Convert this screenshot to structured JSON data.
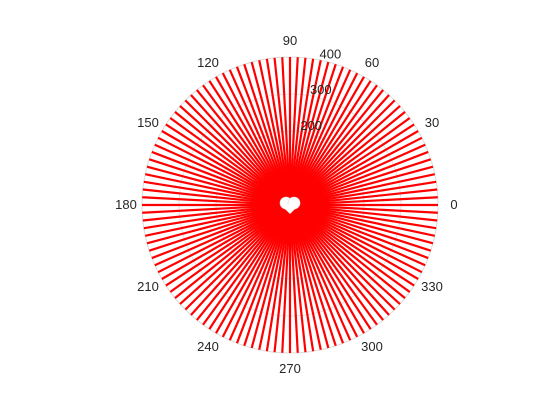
{
  "chart_data": {
    "type": "polar-stem",
    "title": "",
    "theta_unit": "degrees",
    "theta_ticks": [
      0,
      30,
      60,
      90,
      120,
      150,
      180,
      210,
      240,
      270,
      300,
      330
    ],
    "theta_tick_labels": [
      "0",
      "30",
      "60",
      "90",
      "120",
      "150",
      "180",
      "210",
      "240",
      "270",
      "300",
      "330"
    ],
    "r_lim": [
      0,
      400
    ],
    "r_ticks": [
      100,
      200,
      300,
      400
    ],
    "r_tick_labels": [
      "",
      "200",
      "300",
      "400"
    ],
    "r_label_angle_deg": 75,
    "grid": true,
    "legend": "none",
    "series": [
      {
        "style": "radial stems from origin",
        "color": "#ff0000",
        "stem_count": 120,
        "theta_start_deg": 0,
        "theta_step_deg": 3,
        "r_values": [
          400,
          400,
          400,
          400,
          400,
          400,
          400,
          400,
          400,
          400,
          400,
          400,
          400,
          400,
          400,
          400,
          400,
          400,
          400,
          400,
          400,
          400,
          400,
          400,
          400,
          400,
          400,
          400,
          400,
          400,
          400,
          400,
          400,
          400,
          400,
          400,
          400,
          400,
          400,
          400,
          400,
          400,
          400,
          400,
          400,
          400,
          400,
          400,
          400,
          400,
          400,
          400,
          400,
          400,
          400,
          400,
          400,
          400,
          400,
          400,
          400,
          400,
          400,
          400,
          400,
          400,
          400,
          400,
          400,
          400,
          400,
          400,
          400,
          400,
          400,
          400,
          400,
          400,
          400,
          400,
          400,
          400,
          400,
          400,
          400,
          400,
          400,
          400,
          400,
          400,
          400,
          400,
          400,
          400,
          400,
          400,
          400,
          400,
          400,
          400,
          400,
          400,
          400,
          400,
          400,
          400,
          400,
          400,
          400,
          400,
          400,
          400,
          400,
          400,
          400,
          400,
          400,
          400,
          400,
          400
        ]
      }
    ]
  },
  "colors": {
    "stem": "#ff0000",
    "grid": "#dcdcdc",
    "tick_text": "#262626",
    "background": "#ffffff"
  }
}
